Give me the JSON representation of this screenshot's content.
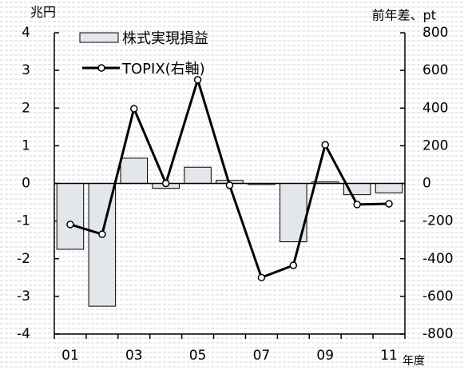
{
  "chart_data": {
    "type": "bar_line",
    "y_axis_label": "兆円",
    "y2_axis_label": "前年差、pt",
    "x_axis_label": "年度",
    "categories": [
      "01",
      null,
      "03",
      null,
      "05",
      null,
      "07",
      null,
      "09",
      null,
      "11"
    ],
    "series": [
      {
        "name": "株式実現損益",
        "type": "bar",
        "color": "#e3e6ea",
        "values": [
          -1.75,
          -3.26,
          0.67,
          -0.13,
          0.43,
          0.08,
          -0.03,
          -1.55,
          0.04,
          -0.3,
          -0.25
        ]
      },
      {
        "name": "TOPIX(右軸)",
        "type": "line",
        "axis": "y2",
        "color": "#000000",
        "values": [
          -218,
          -270,
          397,
          0,
          550,
          -10,
          -500,
          -435,
          205,
          -112,
          -108
        ]
      }
    ],
    "ylim": [
      -4,
      4
    ],
    "yticks": [
      -4,
      -3,
      -2,
      -1,
      0,
      1,
      2,
      3,
      4
    ],
    "y2lim": [
      -800,
      800
    ],
    "y2ticks": [
      -800,
      -600,
      -400,
      -200,
      0,
      200,
      400,
      600,
      800
    ],
    "legend": "upper left"
  }
}
